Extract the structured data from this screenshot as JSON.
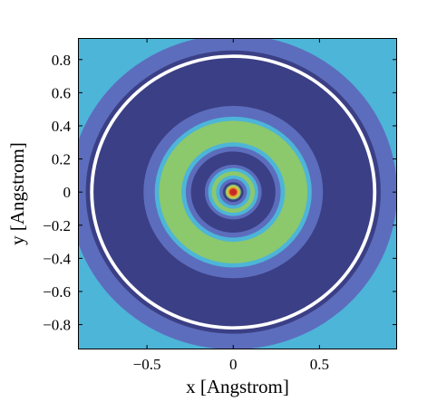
{
  "chart_data": {
    "type": "heatmap",
    "subtype": "filled-contour",
    "xlabel": "x  [Angstrom]",
    "ylabel": "y  [Angstrom]",
    "xlim": [
      -0.9,
      0.95
    ],
    "ylim": [
      -0.95,
      0.93
    ],
    "xticks": [
      -0.5,
      0,
      0.5
    ],
    "xtick_labels": [
      "−0.5",
      "0",
      "0.5"
    ],
    "yticks": [
      0.8,
      0.6,
      0.4,
      0.2,
      0,
      -0.2,
      -0.4,
      -0.6,
      -0.8
    ],
    "ytick_labels": [
      "0.8",
      "0.6",
      "0.4",
      "0.2",
      "0",
      "−0.2",
      "−0.4",
      "−0.6",
      "−0.8"
    ],
    "background_color": "#4db5d8",
    "grid": false,
    "rings": [
      {
        "r_outer": 0.95,
        "color": "#5d6dbd"
      },
      {
        "r_outer": 0.855,
        "color": "#3b3f85"
      },
      {
        "r_outer": 0.83,
        "color": "#ffffff"
      },
      {
        "r_outer": 0.81,
        "color": "#3b3f85"
      },
      {
        "r_outer": 0.52,
        "color": "#5d6dbd"
      },
      {
        "r_outer": 0.455,
        "color": "#4db5d8"
      },
      {
        "r_outer": 0.43,
        "color": "#8cc86c"
      },
      {
        "r_outer": 0.3,
        "color": "#4db5d8"
      },
      {
        "r_outer": 0.275,
        "color": "#5d6dbd"
      },
      {
        "r_outer": 0.245,
        "color": "#3b3f85"
      },
      {
        "r_outer": 0.165,
        "color": "#5d6dbd"
      },
      {
        "r_outer": 0.145,
        "color": "#4db5d8"
      },
      {
        "r_outer": 0.125,
        "color": "#8cc86c"
      },
      {
        "r_outer": 0.1,
        "color": "#4db5d8"
      },
      {
        "r_outer": 0.08,
        "color": "#5d6dbd"
      },
      {
        "r_outer": 0.06,
        "color": "#3b3f85"
      },
      {
        "r_outer": 0.045,
        "color": "#8cc86c"
      },
      {
        "r_outer": 0.035,
        "color": "#e8c83a"
      },
      {
        "r_outer": 0.028,
        "color": "#e07a28"
      },
      {
        "r_outer": 0.02,
        "color": "#c62828"
      }
    ]
  }
}
